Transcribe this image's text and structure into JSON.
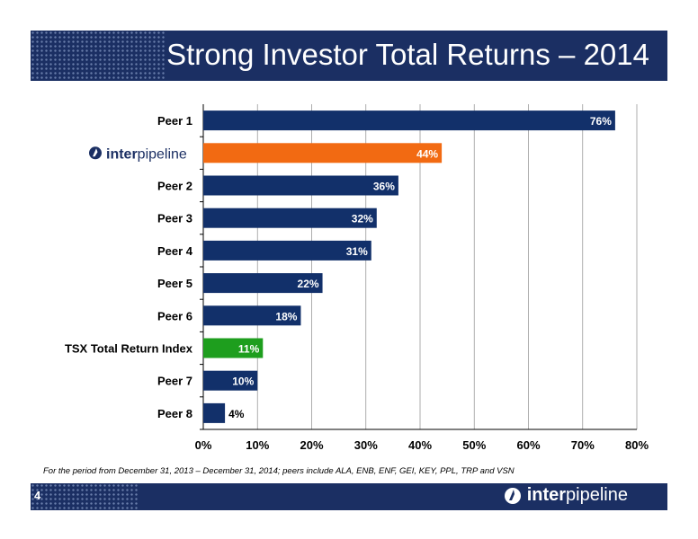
{
  "header": {
    "title": "Strong Investor Total Returns – 2014"
  },
  "footnote": "For the period from December  31, 2013 – December 31, 2014; peers include ALA, ENB, ENF, GEI, KEY, PPL, TRP and VSN",
  "footer": {
    "slide_number": "4",
    "logo_inter": "inter",
    "logo_pipeline": "pipeline"
  },
  "colors": {
    "navy": "#1b2f63",
    "bar_navy": "#12306a",
    "orange": "#f26a12",
    "green": "#1e9e1e"
  },
  "chart_data": {
    "type": "bar",
    "orientation": "horizontal",
    "categories": [
      "Peer 1",
      "inter pipeline",
      "Peer 2",
      "Peer 3",
      "Peer 4",
      "Peer 5",
      "Peer 6",
      "TSX Total Return Index",
      "Peer 7",
      "Peer 8"
    ],
    "values": [
      76,
      44,
      36,
      32,
      31,
      22,
      18,
      11,
      10,
      4
    ],
    "value_labels": [
      "76%",
      "44%",
      "36%",
      "32%",
      "31%",
      "22%",
      "18%",
      "11%",
      "10%",
      "4%"
    ],
    "bar_colors": [
      "#12306a",
      "#f26a12",
      "#12306a",
      "#12306a",
      "#12306a",
      "#12306a",
      "#12306a",
      "#1e9e1e",
      "#12306a",
      "#12306a"
    ],
    "xlim": [
      0,
      80
    ],
    "xticks": [
      0,
      10,
      20,
      30,
      40,
      50,
      60,
      70,
      80
    ],
    "xtick_labels": [
      "0%",
      "10%",
      "20%",
      "30%",
      "40%",
      "50%",
      "60%",
      "70%",
      "80%"
    ],
    "grid": true,
    "legend": "none"
  }
}
